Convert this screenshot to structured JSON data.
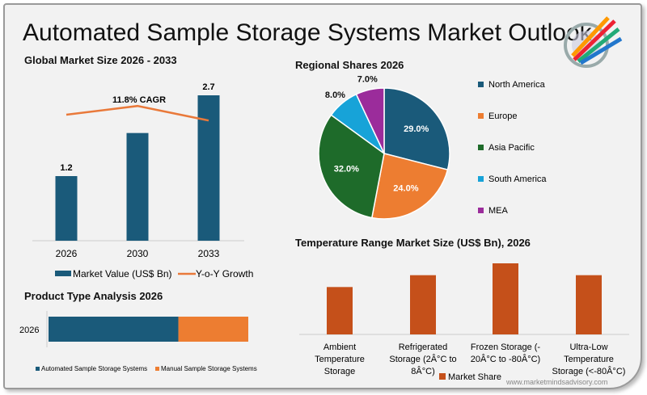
{
  "title": "Automated Sample Storage Systems Market Outlook",
  "watermark": "www.marketmindsadvisory.com",
  "chart_data": [
    {
      "type": "bar",
      "title": "Global Market Size 2026 - 2033",
      "categories": [
        "2026",
        "2030",
        "2033"
      ],
      "series": [
        {
          "name": "Market Value (US$ Bn)",
          "values": [
            1.2,
            2.0,
            2.7
          ],
          "labels": [
            "1.2",
            "",
            "2.7"
          ],
          "color": "#1a5a7a"
        },
        {
          "name": "Y-o-Y Growth",
          "type": "line",
          "values": [
            0.72,
            0.78,
            0.68
          ],
          "color": "#e9793a"
        }
      ],
      "annotation": "11.8% CAGR",
      "legend": "bottom"
    },
    {
      "type": "pie",
      "title": "Regional Shares 2026",
      "categories": [
        "North America",
        "Europe",
        "Asia Pacific",
        "South America",
        "MEA"
      ],
      "values": [
        29.0,
        24.0,
        32.0,
        8.0,
        7.0
      ],
      "labels": [
        "29.0%",
        "24.0%",
        "32.0%",
        "8.0%",
        "7.0%"
      ],
      "colors": [
        "#1a5a7a",
        "#ed7d31",
        "#1e6b2a",
        "#17a3d8",
        "#9b2c9b"
      ],
      "legend": "right"
    },
    {
      "type": "bar",
      "orientation": "horizontal-stacked",
      "title": "Product Type Analysis 2026",
      "categories": [
        "2026"
      ],
      "series": [
        {
          "name": "Automated Sample Storage Systems",
          "values": [
            65
          ],
          "color": "#1a5a7a"
        },
        {
          "name": "Manual Sample Storage Systems",
          "values": [
            35
          ],
          "color": "#ed7d31"
        }
      ],
      "legend": "bottom"
    },
    {
      "type": "bar",
      "title": "Temperature Range Market Size (US$ Bn), 2026",
      "categories": [
        "Ambient Temperature Storage",
        "Refrigerated Storage (2Â°C to 8Â°C)",
        "Frozen Storage (-20Â°C to -80Â°C)",
        "Ultra-Low Temperature Storage (<-80Â°C)"
      ],
      "category_lines": [
        [
          "Ambient",
          "Temperature",
          "Storage"
        ],
        [
          "Refrigerated",
          "Storage (2Â°C to",
          "8Â°C)"
        ],
        [
          "Frozen Storage (-",
          "20Â°C to -80Â°C)"
        ],
        [
          "Ultra-Low",
          "Temperature",
          "Storage (<-80Â°C)"
        ]
      ],
      "series": [
        {
          "name": "Market Share",
          "values": [
            0.24,
            0.3,
            0.36,
            0.3
          ],
          "color": "#c5501a"
        }
      ],
      "legend": "bottom"
    }
  ]
}
